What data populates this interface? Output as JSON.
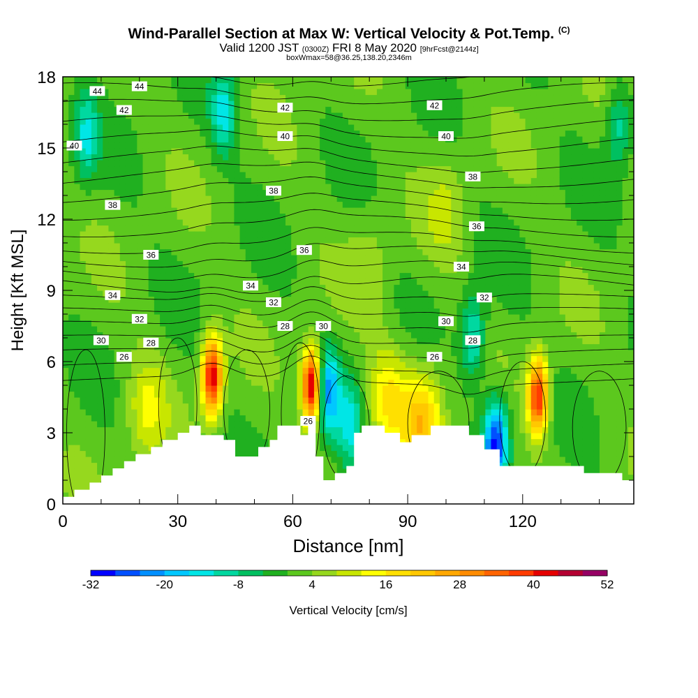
{
  "header": {
    "title": "Wind-Parallel Section at Max W: Vertical Velocity & Pot.Temp.",
    "title_tag": "(C)",
    "subtitle_prefix": "Valid 1200 JST",
    "subtitle_utc": "(0300Z)",
    "subtitle_date": "FRI 8 May 2020",
    "subtitle_forecast": "[9hrFcst@2144z]",
    "info": "boxWmax=58@36.25,138.20,2346m"
  },
  "chart_data": {
    "type": "heatmap",
    "xlabel": "Distance [nm]",
    "ylabel": "Height [Kft MSL]",
    "xlim": [
      0,
      149
    ],
    "ylim": [
      0,
      18
    ],
    "x_ticks": [
      "0",
      "30",
      "60",
      "90",
      "120"
    ],
    "x_tick_values": [
      0,
      30,
      60,
      90,
      120
    ],
    "y_ticks": [
      "0",
      "3",
      "6",
      "9",
      "12",
      "15",
      "18"
    ],
    "y_tick_values": [
      0,
      3,
      6,
      9,
      12,
      15,
      18
    ],
    "colorbar": {
      "label": "Vertical Velocity [cm/s]",
      "min": -32,
      "max": 52,
      "step": 4,
      "tick_labels": [
        "-32",
        "-20",
        "-8",
        "4",
        "16",
        "28",
        "40",
        "52"
      ],
      "tick_values": [
        -32,
        -20,
        -8,
        4,
        16,
        28,
        40,
        52
      ],
      "colors": [
        "#0000ff",
        "#0050ff",
        "#0090ff",
        "#00c8ff",
        "#00e6e6",
        "#00d8a0",
        "#00c060",
        "#20b020",
        "#5cc81e",
        "#96d81e",
        "#c8e600",
        "#ffff00",
        "#ffe000",
        "#ffc800",
        "#ffa800",
        "#ff8c00",
        "#ff6400",
        "#ff3c00",
        "#e60000",
        "#b40032",
        "#960064",
        "#780096",
        "#5a0096"
      ]
    },
    "terrain_top_kft": [
      [
        0,
        0.3
      ],
      [
        3,
        0.6
      ],
      [
        7,
        0.9
      ],
      [
        10,
        1.2
      ],
      [
        13,
        1.5
      ],
      [
        16,
        1.8
      ],
      [
        19,
        2.1
      ],
      [
        23,
        2.4
      ],
      [
        26,
        2.7
      ],
      [
        30,
        3.0
      ],
      [
        33,
        3.3
      ],
      [
        36,
        3.3
      ],
      [
        36,
        2.9
      ],
      [
        42,
        2.9
      ],
      [
        42,
        2.7
      ],
      [
        45,
        2.7
      ],
      [
        45,
        2.0
      ],
      [
        51,
        2.0
      ],
      [
        51,
        2.4
      ],
      [
        54,
        2.4
      ],
      [
        54,
        2.7
      ],
      [
        56,
        2.7
      ],
      [
        56,
        3.3
      ],
      [
        62,
        3.3
      ],
      [
        62,
        2.9
      ],
      [
        64,
        2.9
      ],
      [
        64,
        3.3
      ],
      [
        66,
        3.3
      ],
      [
        66,
        2.0
      ],
      [
        68,
        2.0
      ],
      [
        68,
        1.0
      ],
      [
        71,
        1.0
      ],
      [
        71,
        1.3
      ],
      [
        74,
        1.3
      ],
      [
        74,
        1.6
      ],
      [
        76,
        1.6
      ],
      [
        76,
        3.0
      ],
      [
        78,
        3.0
      ],
      [
        78,
        3.3
      ],
      [
        84,
        3.3
      ],
      [
        84,
        3.0
      ],
      [
        88,
        3.0
      ],
      [
        88,
        2.6
      ],
      [
        91,
        2.6
      ],
      [
        91,
        2.9
      ],
      [
        96,
        2.9
      ],
      [
        96,
        3.3
      ],
      [
        106,
        3.3
      ],
      [
        106,
        2.9
      ],
      [
        110,
        2.9
      ],
      [
        110,
        2.3
      ],
      [
        114,
        2.3
      ],
      [
        114,
        1.6
      ],
      [
        136,
        1.6
      ],
      [
        136,
        1.3
      ],
      [
        146,
        1.3
      ],
      [
        146,
        1.0
      ],
      [
        149,
        1.0
      ]
    ],
    "updrafts": [
      {
        "x": 39,
        "z": 5.4,
        "peak": 44
      },
      {
        "x": 65,
        "z": 5.0,
        "peak": 48
      },
      {
        "x": 124,
        "z": 4.6,
        "peak": 40
      },
      {
        "x": 85,
        "z": 4.5,
        "peak": 14
      },
      {
        "x": 94,
        "z": 3.5,
        "peak": 20
      },
      {
        "x": 22,
        "z": 4.0,
        "peak": 10
      },
      {
        "x": 100,
        "z": 12.5,
        "peak": 6
      },
      {
        "x": 80,
        "z": 10.0,
        "peak": 5
      }
    ],
    "downdrafts": [
      {
        "x": 113,
        "z": 2.7,
        "peak": -30
      },
      {
        "x": 69,
        "z": 4.8,
        "peak": -22
      },
      {
        "x": 107,
        "z": 7.0,
        "peak": -16
      },
      {
        "x": 6,
        "z": 15.5,
        "peak": -14
      },
      {
        "x": 42,
        "z": 16.5,
        "peak": -14
      },
      {
        "x": 145,
        "z": 16.0,
        "peak": -12
      },
      {
        "x": 75,
        "z": 3.3,
        "peak": -14
      }
    ],
    "theta_contour_labels": [
      {
        "text": "44",
        "x": 9,
        "z": 17.4
      },
      {
        "text": "44",
        "x": 20,
        "z": 17.6
      },
      {
        "text": "42",
        "x": 16,
        "z": 16.6
      },
      {
        "text": "42",
        "x": 58,
        "z": 16.7
      },
      {
        "text": "42",
        "x": 97,
        "z": 16.8
      },
      {
        "text": "40",
        "x": 3,
        "z": 15.1
      },
      {
        "text": "40",
        "x": 58,
        "z": 15.5
      },
      {
        "text": "40",
        "x": 100,
        "z": 15.5
      },
      {
        "text": "38",
        "x": 13,
        "z": 12.6
      },
      {
        "text": "38",
        "x": 55,
        "z": 13.2
      },
      {
        "text": "38",
        "x": 107,
        "z": 13.8
      },
      {
        "text": "36",
        "x": 23,
        "z": 10.5
      },
      {
        "text": "36",
        "x": 63,
        "z": 10.7
      },
      {
        "text": "36",
        "x": 108,
        "z": 11.7
      },
      {
        "text": "34",
        "x": 13,
        "z": 8.8
      },
      {
        "text": "34",
        "x": 49,
        "z": 9.2
      },
      {
        "text": "34",
        "x": 104,
        "z": 10.0
      },
      {
        "text": "32",
        "x": 20,
        "z": 7.8
      },
      {
        "text": "32",
        "x": 55,
        "z": 8.5
      },
      {
        "text": "32",
        "x": 110,
        "z": 8.7
      },
      {
        "text": "30",
        "x": 10,
        "z": 6.9
      },
      {
        "text": "30",
        "x": 68,
        "z": 7.5
      },
      {
        "text": "30",
        "x": 100,
        "z": 7.7
      },
      {
        "text": "28",
        "x": 23,
        "z": 6.8
      },
      {
        "text": "28",
        "x": 58,
        "z": 7.5
      },
      {
        "text": "28",
        "x": 107,
        "z": 6.9
      },
      {
        "text": "26",
        "x": 16,
        "z": 6.2
      },
      {
        "text": "26",
        "x": 97,
        "z": 6.2
      },
      {
        "text": "26",
        "x": 64,
        "z": 3.5
      }
    ]
  }
}
